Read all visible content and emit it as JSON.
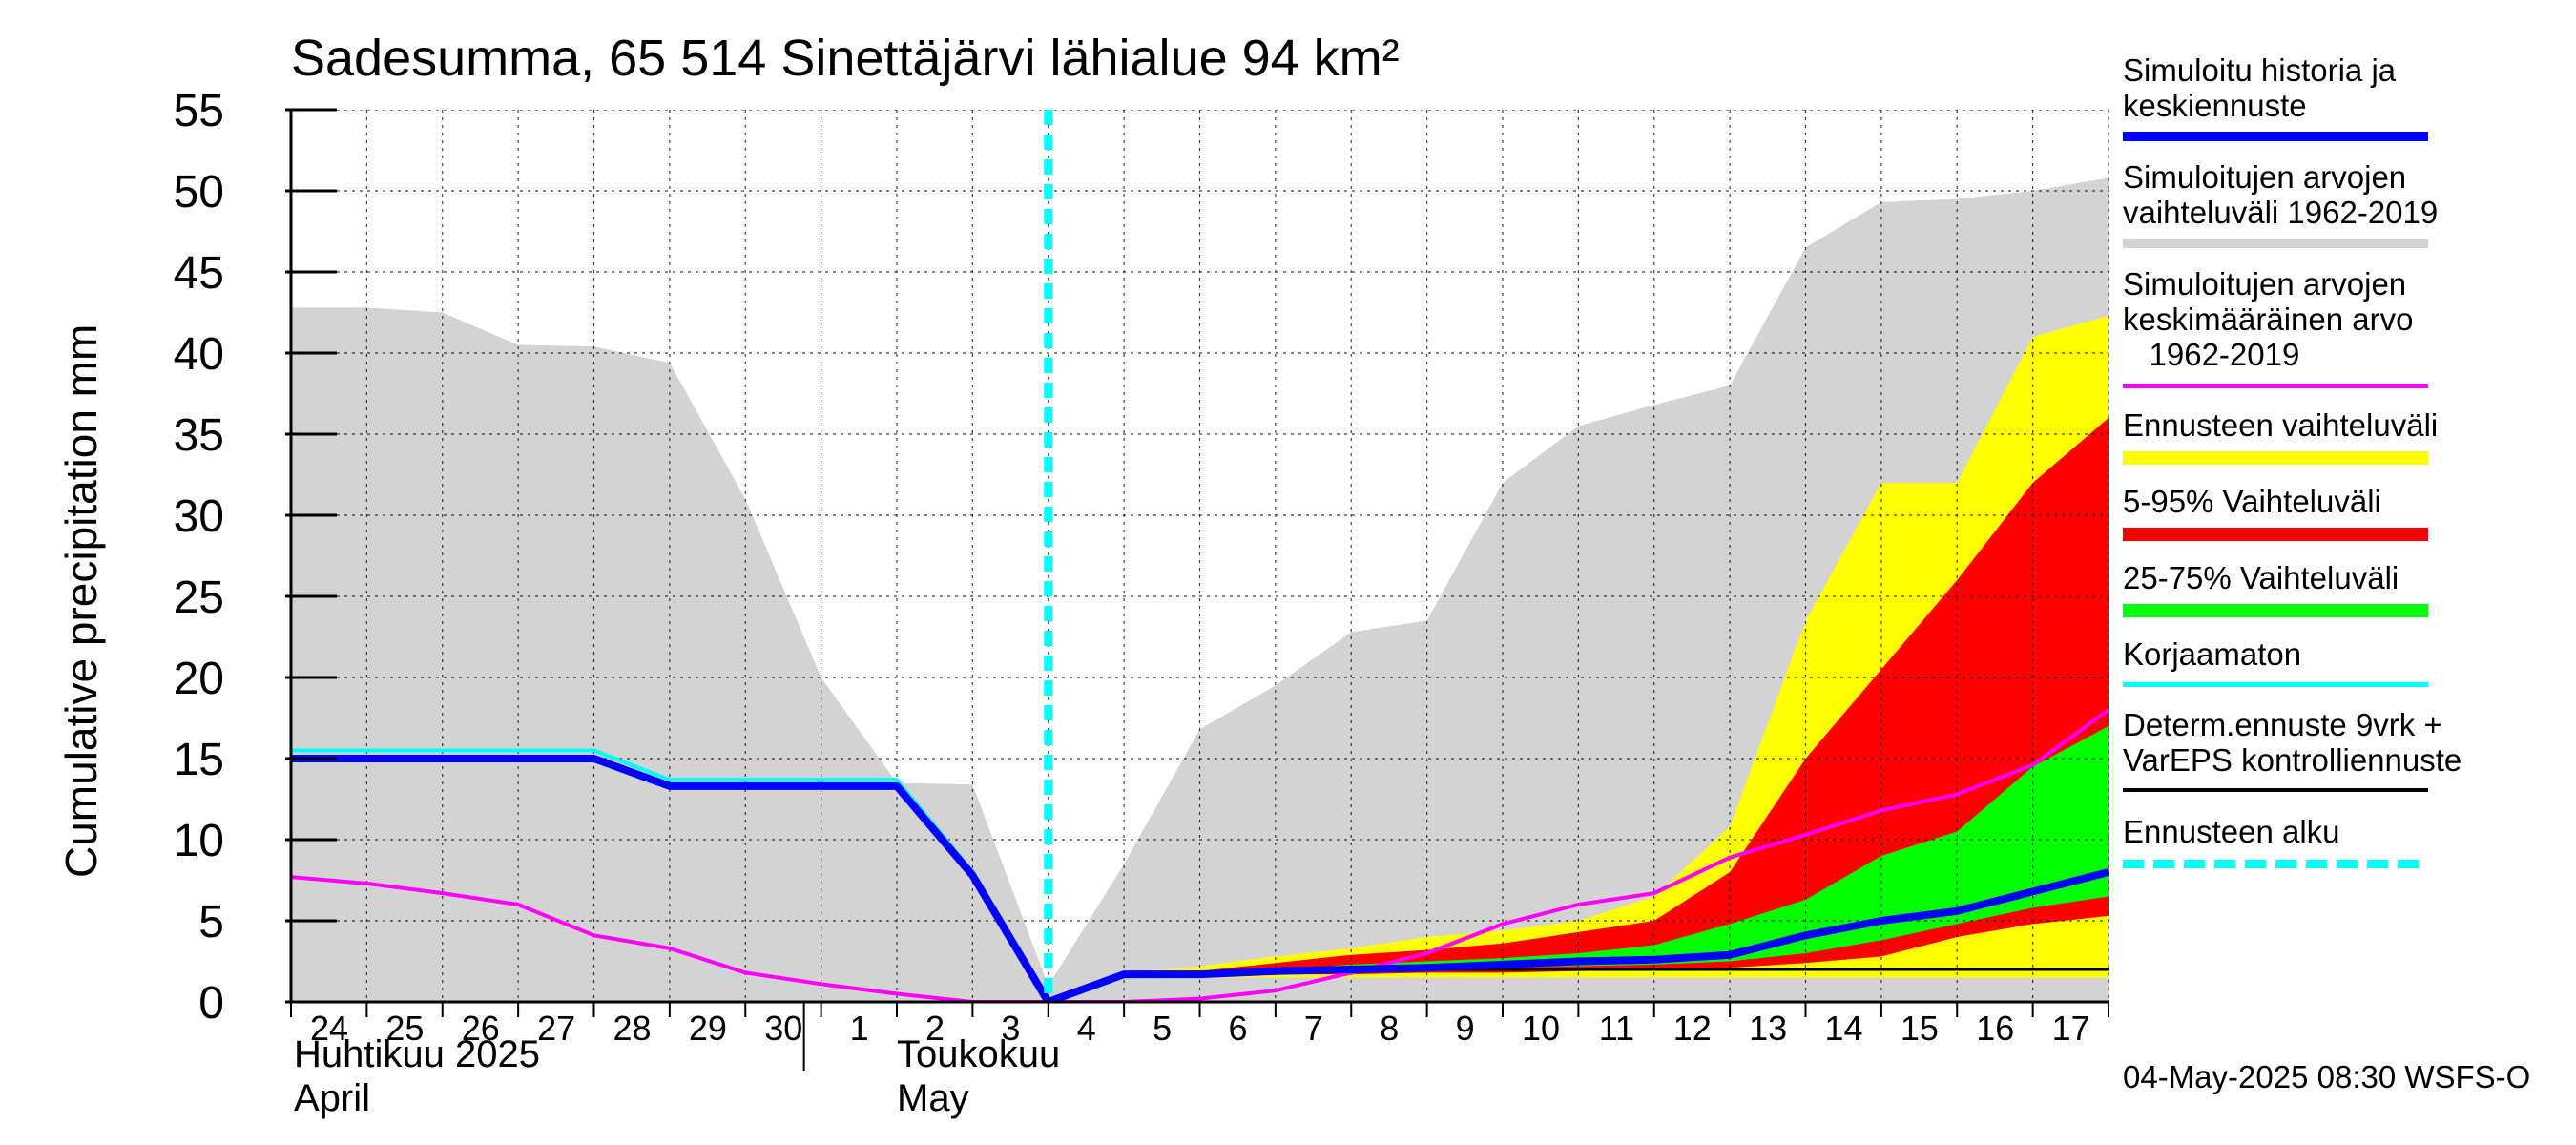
{
  "title": "Sadesumma, 65 514 Sinettäjärvi lähialue 94 km²",
  "footer": "04-May-2025 08:30 WSFS-O",
  "colors": {
    "history_range": "#d3d3d3",
    "forecast_range": "#ffff00",
    "p5_95": "#ff0000",
    "p25_75": "#00ff00",
    "simulated": "#0000ff",
    "mean": "#ff00ff",
    "uncorrected": "#00ffff",
    "determ": "#000000",
    "forecast_start": "#00ffff"
  },
  "months": [
    {
      "fi": "Huhtikuu  2025",
      "en": "April"
    },
    {
      "fi": "Toukokuu",
      "en": "May"
    }
  ],
  "legend": [
    {
      "key": "simulated",
      "label": "Simuloitu historia ja\nkeskiennuste"
    },
    {
      "key": "history_range",
      "label": "Simuloitujen arvojen\nvaihteluväli 1962-2019"
    },
    {
      "key": "mean",
      "label": "Simuloitujen arvojen\nkeskimääräinen arvo\n   1962-2019"
    },
    {
      "key": "forecast_range",
      "label": "Ennusteen vaihteluväli"
    },
    {
      "key": "p5_95",
      "label": "5-95% Vaihteluväli"
    },
    {
      "key": "p25_75",
      "label": "25-75% Vaihteluväli"
    },
    {
      "key": "uncorrected",
      "label": "Korjaamaton"
    },
    {
      "key": "determ",
      "label": "Determ.ennuste 9vrk +\nVarEPS kontrolliennuste"
    },
    {
      "key": "forecast_start",
      "label": "Ennusteen alku"
    }
  ],
  "chart_data": {
    "type": "area",
    "ylabel": "Cumulative precipitation   mm",
    "ylim": [
      0,
      55
    ],
    "yticks": [
      0,
      5,
      10,
      15,
      20,
      25,
      30,
      35,
      40,
      45,
      50,
      55
    ],
    "x_day_range": [
      24,
      48
    ],
    "x_tick_labels": [
      "24",
      "25",
      "26",
      "27",
      "28",
      "29",
      "30",
      "1",
      "2",
      "3",
      "4",
      "5",
      "6",
      "7",
      "8",
      "9",
      "10",
      "11",
      "12",
      "13",
      "14",
      "15",
      "16",
      "17"
    ],
    "forecast_start_day": 34,
    "grid": true,
    "series": {
      "history_upper": {
        "x": [
          24,
          25,
          26,
          27,
          28,
          29,
          30,
          31,
          32,
          33,
          34,
          35,
          36,
          37,
          38,
          39,
          40,
          41,
          42,
          43,
          44,
          45,
          46,
          47,
          48
        ],
        "y": [
          42.8,
          42.8,
          42.5,
          40.5,
          40.4,
          39.4,
          31.0,
          20.0,
          13.5,
          13.4,
          1.0,
          8.5,
          16.8,
          19.5,
          22.8,
          23.5,
          32.0,
          35.5,
          36.8,
          38.0,
          46.5,
          49.3,
          49.5,
          50.0,
          50.8
        ]
      },
      "forecast_max": {
        "x": [
          34,
          35,
          36,
          37,
          38,
          39,
          40,
          41,
          42,
          43,
          44,
          45,
          46,
          47,
          48
        ],
        "y": [
          0,
          1.8,
          2.2,
          2.8,
          3.3,
          4.0,
          4.4,
          5.0,
          6.5,
          10.8,
          23.5,
          32.0,
          32.0,
          41.0,
          42.3
        ]
      },
      "forecast_min": {
        "x": [
          34,
          35,
          36,
          37,
          38,
          39,
          40,
          41,
          42,
          43,
          44,
          45,
          46,
          47,
          48
        ],
        "y": [
          0,
          1.5,
          1.5,
          1.5,
          1.5,
          1.5,
          1.5,
          1.5,
          1.5,
          1.5,
          1.5,
          1.5,
          1.5,
          1.5,
          1.5
        ]
      },
      "p95": {
        "x": [
          34,
          35,
          36,
          37,
          38,
          39,
          40,
          41,
          42,
          43,
          44,
          45,
          46,
          47,
          48
        ],
        "y": [
          0,
          1.8,
          1.9,
          2.4,
          2.9,
          3.2,
          3.6,
          4.3,
          5.0,
          8.0,
          15.0,
          20.5,
          26.0,
          32.0,
          36.0
        ]
      },
      "p5": {
        "x": [
          34,
          35,
          36,
          37,
          38,
          39,
          40,
          41,
          42,
          43,
          44,
          45,
          46,
          47,
          48
        ],
        "y": [
          0,
          1.6,
          1.6,
          1.7,
          1.7,
          1.8,
          1.8,
          1.9,
          2.0,
          2.1,
          2.4,
          2.8,
          4.0,
          4.8,
          5.3
        ]
      },
      "p75": {
        "x": [
          34,
          35,
          36,
          37,
          38,
          39,
          40,
          41,
          42,
          43,
          44,
          45,
          46,
          47,
          48
        ],
        "y": [
          0,
          1.7,
          1.8,
          2.0,
          2.3,
          2.5,
          2.7,
          3.0,
          3.5,
          4.8,
          6.3,
          9.0,
          10.5,
          14.5,
          17.0
        ]
      },
      "p25": {
        "x": [
          34,
          35,
          36,
          37,
          38,
          39,
          40,
          41,
          42,
          43,
          44,
          45,
          46,
          47,
          48
        ],
        "y": [
          0,
          1.6,
          1.7,
          1.8,
          1.8,
          2.0,
          2.1,
          2.2,
          2.3,
          2.5,
          3.0,
          3.8,
          4.8,
          5.8,
          6.5
        ]
      },
      "simulated": {
        "x": [
          24,
          25,
          26,
          27,
          28,
          29,
          30,
          31,
          32,
          33,
          34,
          35,
          36,
          37,
          38,
          39,
          40,
          41,
          42,
          43,
          44,
          45,
          46,
          47,
          48
        ],
        "y": [
          15.0,
          15.0,
          15.0,
          15.0,
          15.0,
          13.3,
          13.3,
          13.3,
          13.3,
          7.8,
          0,
          1.7,
          1.7,
          1.9,
          2.0,
          2.1,
          2.3,
          2.5,
          2.6,
          2.9,
          4.1,
          5.0,
          5.6,
          6.8,
          8.0
        ]
      },
      "uncorrected": {
        "x": [
          24,
          25,
          26,
          27,
          28,
          29,
          30,
          31,
          32,
          33,
          34
        ],
        "y": [
          15.5,
          15.5,
          15.5,
          15.5,
          15.5,
          13.7,
          13.7,
          13.7,
          13.7,
          8.0,
          0
        ]
      },
      "mean": {
        "x": [
          24,
          25,
          26,
          27,
          28,
          29,
          30,
          31,
          32,
          33,
          34,
          35,
          36,
          37,
          38,
          39,
          40,
          41,
          42,
          43,
          44,
          45,
          46,
          47,
          48
        ],
        "y": [
          7.7,
          7.3,
          6.7,
          6.0,
          4.1,
          3.3,
          1.8,
          1.1,
          0.5,
          0,
          0,
          0,
          0.2,
          0.7,
          1.8,
          3.0,
          4.8,
          6.0,
          6.7,
          8.9,
          10.3,
          11.8,
          12.8,
          14.6,
          18.0
        ]
      },
      "determ": {
        "x": [
          34,
          35,
          36,
          37,
          38,
          39,
          40,
          41,
          42,
          43,
          44,
          45,
          46,
          47,
          48
        ],
        "y": [
          0,
          1.6,
          1.7,
          1.8,
          1.9,
          2.0,
          2.0,
          2.0,
          2.0,
          2.0,
          2.0,
          2.0,
          2.0,
          2.0,
          2.0
        ]
      }
    }
  }
}
